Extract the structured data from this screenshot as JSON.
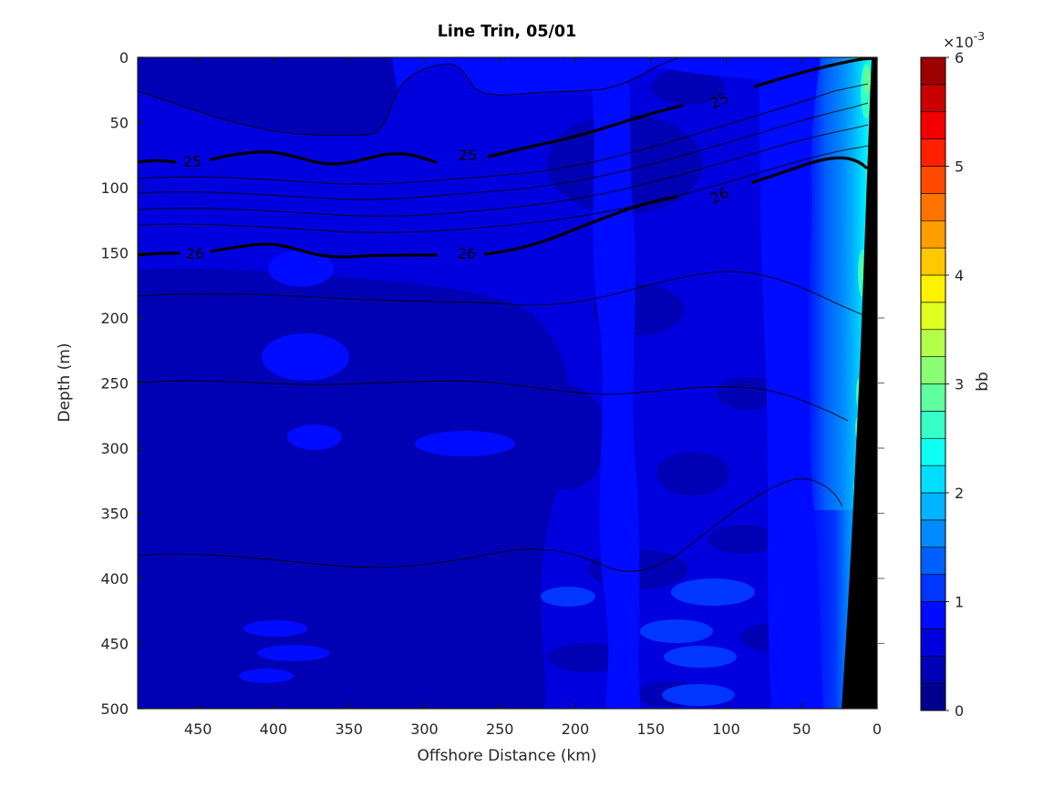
{
  "figure": {
    "background": "#ffffff"
  },
  "chart_data": {
    "type": "heatmap",
    "subtype": "filled-contour-ocean-section-with-isopycnal-overlay",
    "title": "Line Trin, 05/01",
    "xlabel": "Offshore Distance (km)",
    "ylabel": "Depth (m)",
    "x_axis": {
      "min": 0,
      "max": 490,
      "reversed": true,
      "ticks": [
        450,
        400,
        350,
        300,
        250,
        200,
        150,
        100,
        50,
        0
      ]
    },
    "y_axis": {
      "min": 0,
      "max": 500,
      "depth_positive_down": true,
      "ticks": [
        0,
        50,
        100,
        150,
        200,
        250,
        300,
        350,
        400,
        450,
        500
      ]
    },
    "grid": false,
    "colorbar": {
      "label": "bb",
      "multiplier": "×10",
      "exponent": "-3",
      "ticks": [
        0,
        1,
        2,
        3,
        4,
        5,
        6
      ],
      "range": [
        0,
        0.006
      ],
      "segments": 24,
      "segment_step": 0.25,
      "colormap": "jet",
      "position": "right",
      "colors": [
        "#00008E",
        "#0000B4",
        "#0000DE",
        "#000CFF",
        "#0036FF",
        "#0060FF",
        "#008AFF",
        "#00B4FF",
        "#00DEFF",
        "#0CFFF2",
        "#36FFC8",
        "#60FF9E",
        "#8AFF74",
        "#B4FF4A",
        "#DEFF20",
        "#FFF200",
        "#FFC800",
        "#FF9E00",
        "#FF7400",
        "#FF4A00",
        "#FF2000",
        "#F20000",
        "#C80000",
        "#9E0000"
      ]
    },
    "field_name": "bb (backscatter)",
    "field_units": "x10^-3",
    "field_grid": {
      "distance_km": [
        490,
        400,
        300,
        250,
        200,
        150,
        100,
        50,
        25,
        15,
        10
      ],
      "depth_m": [
        0,
        50,
        100,
        150,
        200,
        250,
        300,
        350,
        400,
        450,
        500
      ],
      "bb_x1e3": [
        [
          0.7,
          0.8,
          0.8,
          0.8,
          0.9,
          0.9,
          1.0,
          1.2,
          2.0,
          2.8,
          3.0
        ],
        [
          0.8,
          0.9,
          0.9,
          0.9,
          0.9,
          1.0,
          1.0,
          1.2,
          1.8,
          2.5,
          2.8
        ],
        [
          0.8,
          0.8,
          0.9,
          0.9,
          0.9,
          1.0,
          1.0,
          1.1,
          1.6,
          2.2,
          2.5
        ],
        [
          0.8,
          0.8,
          0.8,
          0.9,
          0.9,
          0.9,
          1.0,
          1.1,
          1.5,
          2.0,
          2.3
        ],
        [
          0.7,
          0.8,
          0.8,
          0.8,
          0.9,
          0.9,
          1.0,
          1.1,
          1.4,
          1.8,
          null
        ],
        [
          0.6,
          0.7,
          0.8,
          0.8,
          0.9,
          0.9,
          1.0,
          1.1,
          1.5,
          2.5,
          null
        ],
        [
          0.6,
          0.7,
          0.7,
          0.8,
          0.8,
          0.9,
          1.0,
          1.1,
          1.6,
          null,
          null
        ],
        [
          0.6,
          0.6,
          0.7,
          0.7,
          0.8,
          0.9,
          0.9,
          1.0,
          1.2,
          null,
          null
        ],
        [
          0.6,
          0.6,
          0.7,
          0.7,
          0.8,
          0.8,
          0.9,
          1.0,
          1.1,
          null,
          null
        ],
        [
          0.6,
          0.6,
          0.6,
          0.7,
          0.8,
          0.8,
          0.9,
          1.0,
          1.1,
          null,
          null
        ],
        [
          0.6,
          0.6,
          0.6,
          0.7,
          0.7,
          0.8,
          0.9,
          1.0,
          1.0,
          null,
          null
        ]
      ]
    },
    "contours": {
      "variable": "density (sigma-t) isopycnals",
      "thick_levels": [
        25,
        26
      ],
      "thin_levels": [
        24.8,
        25.2,
        25.4,
        25.6,
        25.8,
        26.2,
        26.4,
        26.6
      ],
      "labels": [
        {
          "text": "25"
        },
        {
          "text": "25"
        },
        {
          "text": "25"
        },
        {
          "text": "26"
        },
        {
          "text": "26"
        },
        {
          "text": "26"
        }
      ],
      "sigma25_depth_profile": {
        "distance_km": [
          490,
          400,
          300,
          200,
          150,
          100,
          75,
          50,
          25,
          8
        ],
        "depth_m": [
          80,
          79,
          82,
          74,
          62,
          45,
          36,
          24,
          8,
          0
        ]
      },
      "sigma26_depth_profile": {
        "distance_km": [
          490,
          400,
          300,
          200,
          150,
          100,
          75,
          50,
          25,
          12
        ],
        "depth_m": [
          150,
          149,
          152,
          143,
          128,
          110,
          98,
          88,
          80,
          76
        ]
      }
    },
    "bathymetry_mask": {
      "color": "#000000",
      "coast_distance_km_at_surface": 5,
      "mask_distance_km_at_500m": 21
    }
  }
}
